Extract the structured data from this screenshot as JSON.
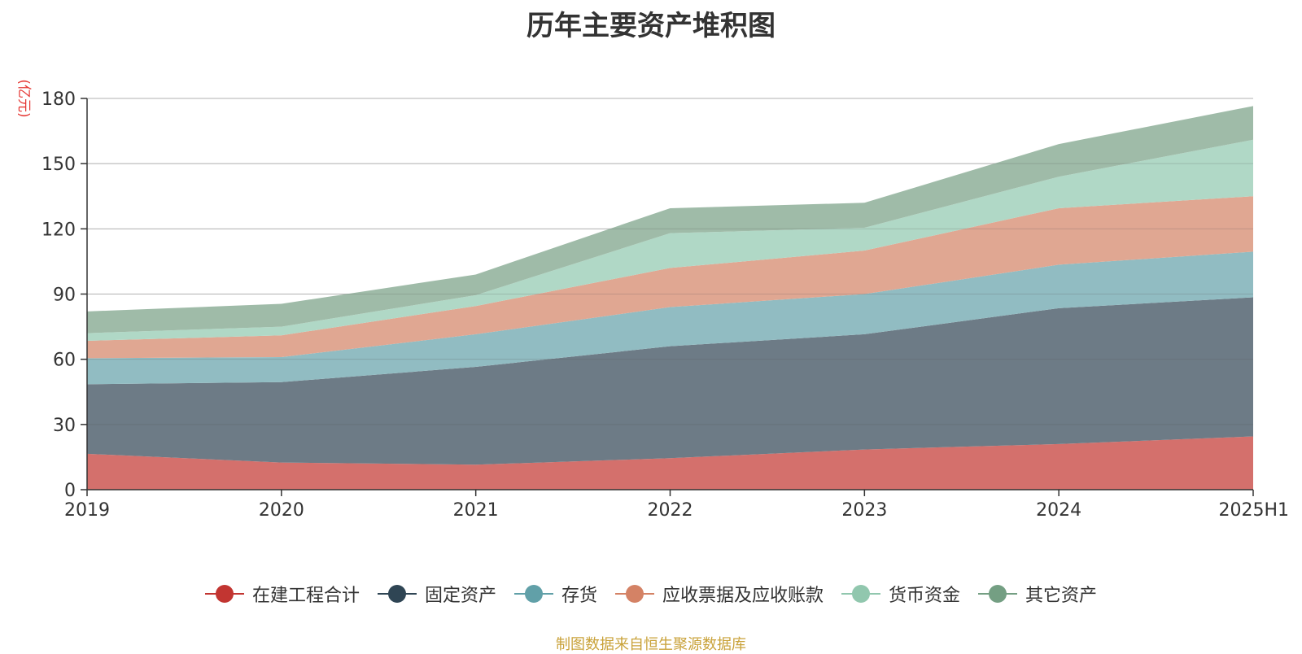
{
  "chart_data": {
    "type": "area",
    "title": "历年主要资产堆积图",
    "unit": "(亿元)",
    "source": "制图数据来自恒生聚源数据库",
    "categories": [
      "2019",
      "2020",
      "2021",
      "2022",
      "2023",
      "2024",
      "2025H1"
    ],
    "ylim": [
      0,
      180
    ],
    "yticks": [
      0,
      30,
      60,
      90,
      120,
      150,
      180
    ],
    "grid": true,
    "stacked": true,
    "legend_position": "bottom",
    "series": [
      {
        "name": "在建工程合计",
        "color": "#c23531",
        "fill": "#d4706c",
        "values": [
          16.5,
          12.5,
          11.5,
          14.5,
          18.5,
          21,
          24.5
        ]
      },
      {
        "name": "固定资产",
        "color": "#2f4554",
        "fill": "#6d7b86",
        "values": [
          32,
          37,
          45,
          51.5,
          53,
          62.5,
          64
        ]
      },
      {
        "name": "存货",
        "color": "#61a0a8",
        "fill": "#91bcc2",
        "values": [
          12,
          11.5,
          15,
          18,
          18.5,
          20,
          21
        ]
      },
      {
        "name": "应收票据及应收账款",
        "color": "#d48265",
        "fill": "#e0a792",
        "values": [
          8,
          10,
          13,
          18,
          20,
          26,
          25.5
        ]
      },
      {
        "name": "货币资金",
        "color": "#91c7ae",
        "fill": "#b0d8c6",
        "values": [
          3.5,
          4,
          5,
          16,
          10.5,
          14.5,
          26
        ]
      },
      {
        "name": "其它资产",
        "color": "#749f83",
        "fill": "#9fbba8",
        "values": [
          10,
          10.5,
          9.5,
          11.5,
          11.5,
          15,
          15.5
        ]
      }
    ]
  }
}
